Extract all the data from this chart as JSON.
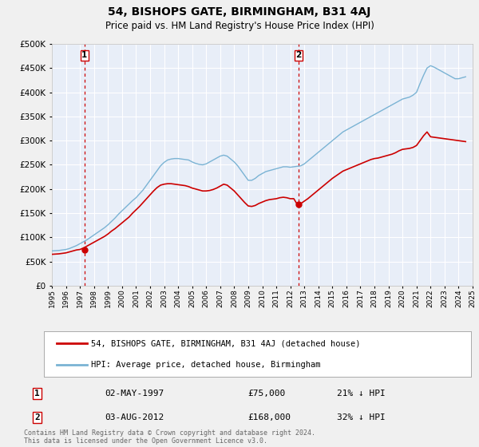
{
  "title": "54, BISHOPS GATE, BIRMINGHAM, B31 4AJ",
  "subtitle": "Price paid vs. HM Land Registry's House Price Index (HPI)",
  "bg_color": "#f0f0f0",
  "plot_bg_color": "#e8eef8",
  "grid_color": "#ffffff",
  "sale1_date": 1997.33,
  "sale1_price": 75000,
  "sale1_label": "1",
  "sale2_date": 2012.58,
  "sale2_price": 168000,
  "sale2_label": "2",
  "hpi_color": "#7ab3d4",
  "price_color": "#cc0000",
  "vline_color": "#cc0000",
  "ylim_max": 500000,
  "ylim_min": 0,
  "xlim_min": 1995,
  "xlim_max": 2025,
  "legend_price_label": "54, BISHOPS GATE, BIRMINGHAM, B31 4AJ (detached house)",
  "legend_hpi_label": "HPI: Average price, detached house, Birmingham",
  "table_row1": [
    "1",
    "02-MAY-1997",
    "£75,000",
    "21% ↓ HPI"
  ],
  "table_row2": [
    "2",
    "03-AUG-2012",
    "£168,000",
    "32% ↓ HPI"
  ],
  "footer": "Contains HM Land Registry data © Crown copyright and database right 2024.\nThis data is licensed under the Open Government Licence v3.0.",
  "hpi_data_x": [
    1995.0,
    1995.25,
    1995.5,
    1995.75,
    1996.0,
    1996.25,
    1996.5,
    1996.75,
    1997.0,
    1997.25,
    1997.5,
    1997.75,
    1998.0,
    1998.25,
    1998.5,
    1998.75,
    1999.0,
    1999.25,
    1999.5,
    1999.75,
    2000.0,
    2000.25,
    2000.5,
    2000.75,
    2001.0,
    2001.25,
    2001.5,
    2001.75,
    2002.0,
    2002.25,
    2002.5,
    2002.75,
    2003.0,
    2003.25,
    2003.5,
    2003.75,
    2004.0,
    2004.25,
    2004.5,
    2004.75,
    2005.0,
    2005.25,
    2005.5,
    2005.75,
    2006.0,
    2006.25,
    2006.5,
    2006.75,
    2007.0,
    2007.25,
    2007.5,
    2007.75,
    2008.0,
    2008.25,
    2008.5,
    2008.75,
    2009.0,
    2009.25,
    2009.5,
    2009.75,
    2010.0,
    2010.25,
    2010.5,
    2010.75,
    2011.0,
    2011.25,
    2011.5,
    2011.75,
    2012.0,
    2012.25,
    2012.5,
    2012.75,
    2013.0,
    2013.25,
    2013.5,
    2013.75,
    2014.0,
    2014.25,
    2014.5,
    2014.75,
    2015.0,
    2015.25,
    2015.5,
    2015.75,
    2016.0,
    2016.25,
    2016.5,
    2016.75,
    2017.0,
    2017.25,
    2017.5,
    2017.75,
    2018.0,
    2018.25,
    2018.5,
    2018.75,
    2019.0,
    2019.25,
    2019.5,
    2019.75,
    2020.0,
    2020.25,
    2020.5,
    2020.75,
    2021.0,
    2021.25,
    2021.5,
    2021.75,
    2022.0,
    2022.25,
    2022.5,
    2022.75,
    2023.0,
    2023.25,
    2023.5,
    2023.75,
    2024.0,
    2024.25,
    2024.5
  ],
  "hpi_data_y": [
    72000,
    72500,
    73000,
    74000,
    75000,
    77000,
    80000,
    83000,
    87000,
    91000,
    95000,
    100000,
    105000,
    110000,
    115000,
    120000,
    126000,
    133000,
    140000,
    148000,
    155000,
    162000,
    169000,
    176000,
    182000,
    190000,
    198000,
    208000,
    218000,
    228000,
    238000,
    248000,
    255000,
    260000,
    262000,
    263000,
    263000,
    262000,
    261000,
    260000,
    256000,
    253000,
    251000,
    250000,
    252000,
    256000,
    260000,
    264000,
    268000,
    270000,
    268000,
    262000,
    256000,
    248000,
    238000,
    228000,
    218000,
    218000,
    222000,
    228000,
    232000,
    236000,
    238000,
    240000,
    242000,
    244000,
    246000,
    246000,
    245000,
    246000,
    247000,
    248000,
    252000,
    258000,
    264000,
    270000,
    276000,
    282000,
    288000,
    294000,
    300000,
    306000,
    312000,
    318000,
    322000,
    326000,
    330000,
    334000,
    338000,
    342000,
    346000,
    350000,
    354000,
    358000,
    362000,
    366000,
    370000,
    374000,
    378000,
    382000,
    386000,
    388000,
    390000,
    394000,
    400000,
    418000,
    435000,
    450000,
    455000,
    452000,
    448000,
    444000,
    440000,
    436000,
    432000,
    428000,
    428000,
    430000,
    432000
  ],
  "price_data_x": [
    1995.0,
    1995.25,
    1995.5,
    1995.75,
    1996.0,
    1996.25,
    1996.5,
    1996.75,
    1997.0,
    1997.25,
    1997.5,
    1997.75,
    1998.0,
    1998.25,
    1998.5,
    1998.75,
    1999.0,
    1999.25,
    1999.5,
    1999.75,
    2000.0,
    2000.25,
    2000.5,
    2000.75,
    2001.0,
    2001.25,
    2001.5,
    2001.75,
    2002.0,
    2002.25,
    2002.5,
    2002.75,
    2003.0,
    2003.25,
    2003.5,
    2003.75,
    2004.0,
    2004.25,
    2004.5,
    2004.75,
    2005.0,
    2005.25,
    2005.5,
    2005.75,
    2006.0,
    2006.25,
    2006.5,
    2006.75,
    2007.0,
    2007.25,
    2007.5,
    2007.75,
    2008.0,
    2008.25,
    2008.5,
    2008.75,
    2009.0,
    2009.25,
    2009.5,
    2009.75,
    2010.0,
    2010.25,
    2010.5,
    2010.75,
    2011.0,
    2011.25,
    2011.5,
    2011.75,
    2012.0,
    2012.25,
    2012.5,
    2012.75,
    2013.0,
    2013.25,
    2013.5,
    2013.75,
    2014.0,
    2014.25,
    2014.5,
    2014.75,
    2015.0,
    2015.25,
    2015.5,
    2015.75,
    2016.0,
    2016.25,
    2016.5,
    2016.75,
    2017.0,
    2017.25,
    2017.5,
    2017.75,
    2018.0,
    2018.25,
    2018.5,
    2018.75,
    2019.0,
    2019.25,
    2019.5,
    2019.75,
    2020.0,
    2020.25,
    2020.5,
    2020.75,
    2021.0,
    2021.25,
    2021.5,
    2021.75,
    2022.0,
    2022.25,
    2022.5,
    2022.75,
    2023.0,
    2023.25,
    2023.5,
    2023.75,
    2024.0,
    2024.25,
    2024.5
  ],
  "price_data_y": [
    65000,
    65500,
    66000,
    67000,
    68000,
    70000,
    72000,
    74000,
    75000,
    78000,
    82000,
    86000,
    90000,
    94000,
    98000,
    102000,
    107000,
    113000,
    118000,
    124000,
    130000,
    136000,
    142000,
    150000,
    157000,
    164000,
    172000,
    180000,
    188000,
    196000,
    203000,
    208000,
    210000,
    211000,
    211000,
    210000,
    209000,
    208000,
    207000,
    205000,
    202000,
    200000,
    198000,
    196000,
    196000,
    197000,
    199000,
    202000,
    206000,
    210000,
    208000,
    202000,
    196000,
    188000,
    180000,
    172000,
    165000,
    164000,
    166000,
    170000,
    173000,
    176000,
    178000,
    179000,
    180000,
    182000,
    183000,
    182000,
    180000,
    180000,
    168000,
    170000,
    175000,
    180000,
    186000,
    192000,
    198000,
    204000,
    210000,
    216000,
    222000,
    227000,
    232000,
    237000,
    240000,
    243000,
    246000,
    249000,
    252000,
    255000,
    258000,
    261000,
    263000,
    264000,
    266000,
    268000,
    270000,
    272000,
    275000,
    279000,
    282000,
    283000,
    284000,
    286000,
    290000,
    300000,
    310000,
    318000,
    308000,
    307000,
    306000,
    305000,
    304000,
    303000,
    302000,
    301000,
    300000,
    299000,
    298000
  ]
}
